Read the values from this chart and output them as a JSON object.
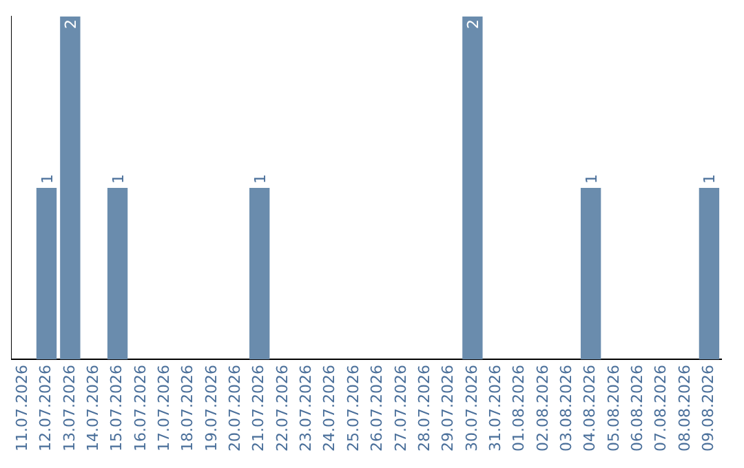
{
  "chart_data": {
    "type": "bar",
    "categories": [
      "11.07.2026",
      "12.07.2026",
      "13.07.2026",
      "14.07.2026",
      "15.07.2026",
      "16.07.2026",
      "17.07.2026",
      "18.07.2026",
      "19.07.2026",
      "20.07.2026",
      "21.07.2026",
      "22.07.2026",
      "23.07.2026",
      "24.07.2026",
      "25.07.2026",
      "26.07.2026",
      "27.07.2026",
      "28.07.2026",
      "29.07.2026",
      "30.07.2026",
      "31.07.2026",
      "01.08.2026",
      "02.08.2026",
      "03.08.2026",
      "04.08.2026",
      "05.08.2026",
      "06.08.2026",
      "07.08.2026",
      "08.08.2026",
      "09.08.2026"
    ],
    "values": [
      0,
      1,
      2,
      0,
      1,
      0,
      0,
      0,
      0,
      0,
      1,
      0,
      0,
      0,
      0,
      0,
      0,
      0,
      0,
      2,
      0,
      0,
      0,
      0,
      1,
      0,
      0,
      0,
      0,
      1
    ],
    "value_labels": [
      null,
      "1",
      "2",
      null,
      "1",
      null,
      null,
      null,
      null,
      null,
      "1",
      null,
      null,
      null,
      null,
      null,
      null,
      null,
      null,
      "2",
      null,
      null,
      null,
      null,
      "1",
      null,
      null,
      null,
      null,
      "1"
    ],
    "color": "#6a8cad",
    "ylim": [
      0,
      2
    ],
    "tick_labels": "x",
    "grid": false,
    "legend": false
  }
}
